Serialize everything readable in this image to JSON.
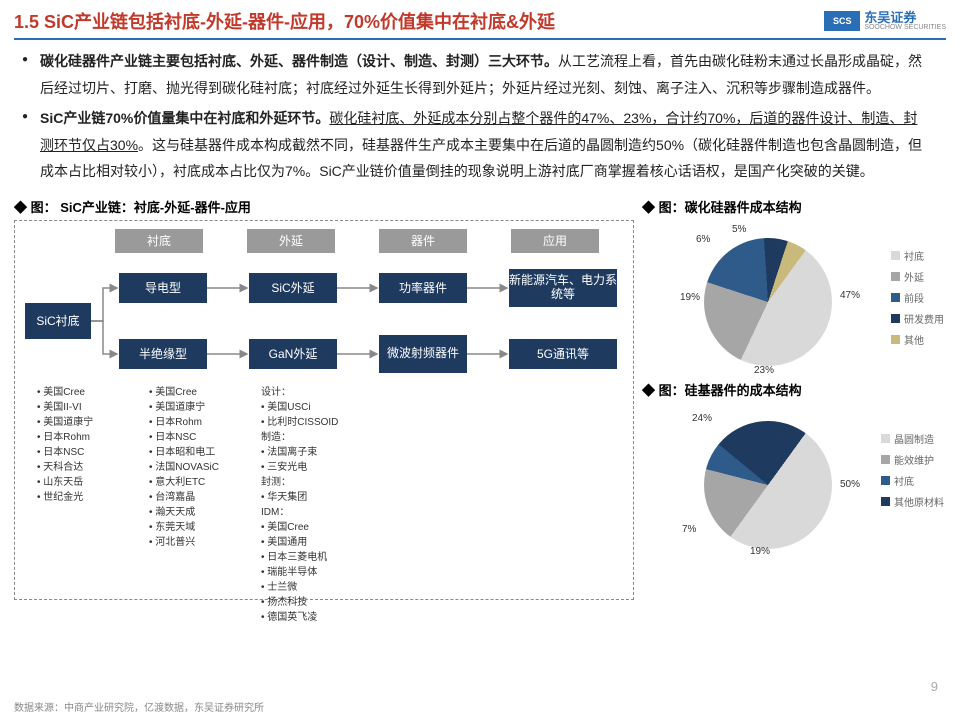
{
  "header": {
    "title": "1.5 SiC产业链包括衬底-外延-器件-应用，70%价值集中在衬底&外延",
    "logo_box": "SCS",
    "logo_cn": "东吴证券",
    "logo_en": "SOOCHOW SECURITIES"
  },
  "para1_bold": "碳化硅器件产业链主要包括衬底、外延、器件制造（设计、制造、封测）三大环节。",
  "para1_rest": "从工艺流程上看，首先由碳化硅粉末通过长晶形成晶碇，然后经过切片、打磨、抛光得到碳化硅衬底；衬底经过外延生长得到外延片；外延片经过光刻、刻蚀、离子注入、沉积等步骤制造成器件。",
  "para2_bold": "SiC产业链70%价值量集中在衬底和外延环节。",
  "para2_ul": "碳化硅衬底、外延成本分别占整个器件的47%、23%，合计约70%，后道的器件设计、制造、封测环节仅占30%",
  "para2_rest": "。这与硅基器件成本构成截然不同，硅基器件生产成本主要集中在后道的晶圆制造约50%（碳化硅器件制造也包含晶圆制造，但成本占比相对较小），衬底成本占比仅为7%。SiC产业链价值量倒挂的现象说明上游衬底厂商掌握着核心话语权，是国产化突破的关键。",
  "flow": {
    "title": "图：  SiC产业链：衬底-外延-器件-应用",
    "headers": [
      "衬底",
      "外延",
      "器件",
      "应用"
    ],
    "root": "SiC衬底",
    "n_daodianzixing": "导电型",
    "n_banjue": "半绝缘型",
    "n_sicwy": "SiC外延",
    "n_ganwy": "GaN外延",
    "n_gonglv": "功率器件",
    "n_weibo": "微波射频器件",
    "n_xny": "新能源汽车、电力系统等",
    "n_5g": "5G通讯等",
    "col1": [
      "美国Cree",
      "美国II-VI",
      "美国道康宁",
      "日本Rohm",
      "日本NSC",
      "天科合达",
      "山东天岳",
      "世纪金光"
    ],
    "col2": [
      "美国Cree",
      "美国道康宁",
      "日本Rohm",
      "日本NSC",
      "日本昭和电工",
      "法国NOVASiC",
      "意大利ETC",
      "台湾嘉晶",
      "瀚天天成",
      "东莞天域",
      "河北普兴"
    ],
    "col3_h1": "设计：",
    "col3_a": [
      "美国USCi",
      "比利时CISSOID"
    ],
    "col3_h2": "制造：",
    "col3_b": [
      "法国离子束",
      "三安光电"
    ],
    "col3_h3": "封测：",
    "col3_c": [
      "华天集团"
    ],
    "col3_h4": "IDM：",
    "col3_d": [
      "美国Cree",
      "美国通用",
      "日本三菱电机",
      "瑞能半导体",
      "士兰微",
      "扬杰科技",
      "德国英飞凌"
    ]
  },
  "pie1": {
    "title": "图：碳化硅器件成本结构",
    "labels": [
      "47%",
      "23%",
      "19%",
      "6%",
      "5%"
    ],
    "colors": [
      "#d9d9d9",
      "#a6a6a6",
      "#2e5b8a",
      "#1e3a5f",
      "#c9b97a"
    ],
    "legend": [
      {
        "label": "衬底",
        "color": "#d9d9d9"
      },
      {
        "label": "外延",
        "color": "#a6a6a6"
      },
      {
        "label": "前段",
        "color": "#2e5b8a"
      },
      {
        "label": "研发费用",
        "color": "#1e3a5f"
      },
      {
        "label": "其他",
        "color": "#c9b97a"
      }
    ]
  },
  "pie2": {
    "title": "图：硅基器件的成本结构",
    "labels": [
      "50%",
      "19%",
      "7%",
      "24%"
    ],
    "colors": [
      "#d9d9d9",
      "#a6a6a6",
      "#2e5b8a",
      "#1e3a5f"
    ],
    "legend": [
      {
        "label": "晶圆制造",
        "color": "#d9d9d9"
      },
      {
        "label": "能效维护",
        "color": "#a6a6a6"
      },
      {
        "label": "衬底",
        "color": "#2e5b8a"
      },
      {
        "label": "其他原材料",
        "color": "#1e3a5f"
      }
    ]
  },
  "page_num": "9",
  "source": "数据来源：中商产业研究院，亿渡数据，东吴证券研究所"
}
